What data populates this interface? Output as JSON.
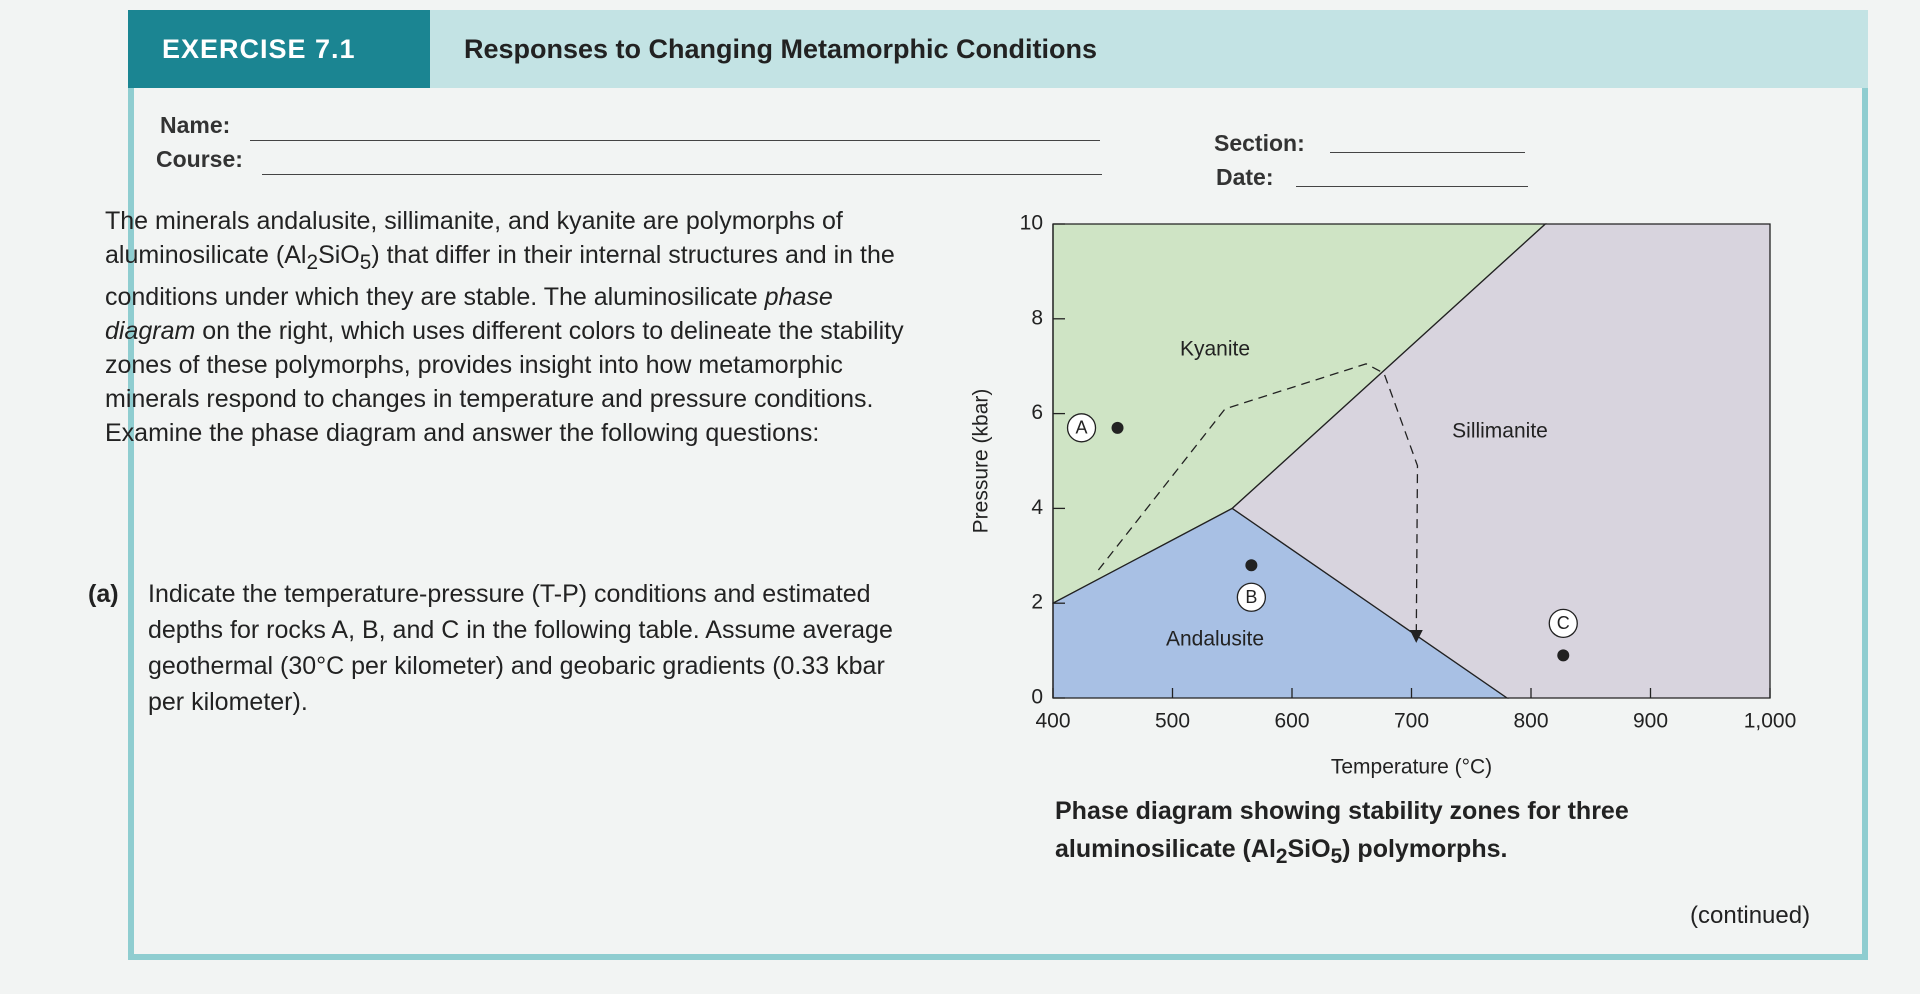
{
  "header": {
    "exercise": "EXERCISE 7.1",
    "title": "Responses to Changing Metamorphic Conditions"
  },
  "form": {
    "name": "Name:",
    "course": "Course:",
    "section": "Section:",
    "date": "Date:"
  },
  "intro": [
    "The minerals andalusite, sillimanite, and kyanite are polymorphs of aluminosilicate (Al",
    "2",
    "SiO",
    "5",
    ") that differ in their internal structures and in the conditions under which they are stable. The aluminosilicate ",
    "phase diagram",
    " on the right, which uses different colors to delineate the stability zones of these polymorphs, provides insight into how metamorphic minerals respond to changes in temperature and pressure conditions. Examine the phase diagram and answer the following questions:"
  ],
  "question_a": {
    "label": "(a)",
    "text": "Indicate the temperature-pressure (T-P) conditions and estimated depths for rocks A, B, and C in the following table. Assume average geothermal (30°C per kilometer) and geobaric gradients (0.33 kbar per kilometer)."
  },
  "chart_data": {
    "type": "phase-diagram",
    "x_label": "Temperature (°C)",
    "y_label": "Pressure (kbar)",
    "xlim": [
      400,
      1000
    ],
    "ylim": [
      0,
      10
    ],
    "xticks": [
      400,
      500,
      600,
      700,
      800,
      900,
      {
        "value": 1000,
        "label": "1,000"
      }
    ],
    "yticks": [
      0,
      2,
      4,
      6,
      8,
      10
    ],
    "regions": [
      {
        "name": "Kyanite",
        "color": "#cfe4c5",
        "x": [
          400,
          550,
          812,
          400
        ],
        "y": [
          2,
          4,
          10,
          10
        ]
      },
      {
        "name": "Andalusite",
        "color": "#a8c0e4",
        "x": [
          400,
          400,
          550,
          780
        ],
        "y": [
          0,
          2,
          4,
          0
        ]
      },
      {
        "name": "Sillimanite",
        "color": "#d8d4de",
        "x": [
          550,
          812,
          1000,
          1000,
          780
        ],
        "y": [
          4,
          10,
          10,
          0,
          0
        ]
      }
    ],
    "path": {
      "x": [
        438,
        544,
        662,
        677,
        705,
        704
      ],
      "y": [
        2.7,
        6.1,
        7.05,
        6.85,
        4.9,
        1.3
      ]
    },
    "points": {
      "labels": [
        "A",
        "B",
        "C"
      ],
      "x": [
        454,
        566,
        827
      ],
      "y": [
        5.7,
        2.8,
        0.9
      ]
    }
  },
  "caption": [
    "Phase diagram showing stability zones for three aluminosilicate (Al",
    "2",
    "SiO",
    "5",
    ") polymorphs."
  ],
  "footer": "(continued)"
}
